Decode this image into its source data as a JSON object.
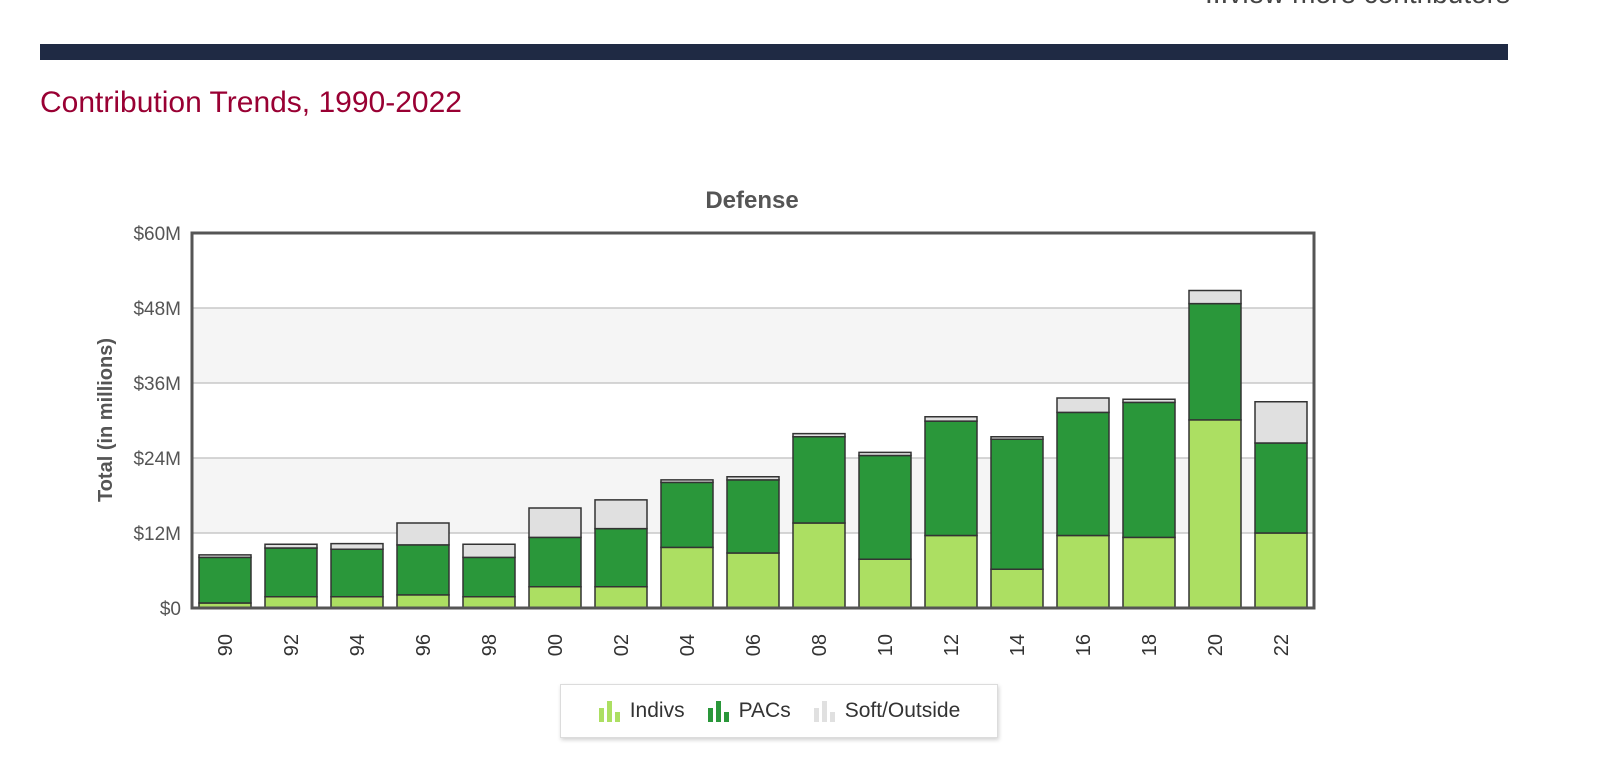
{
  "header": {
    "top_link_text": "...view more contributors",
    "section_title": "Contribution Trends, 1990-2022"
  },
  "colors": {
    "indivs": "#acdf62",
    "pacs": "#2a973a",
    "soft": "#e0e0e0",
    "divider": "#1f2a44",
    "title": "#990033"
  },
  "icons": {
    "legend": "bar-chart-icon"
  },
  "chart_data": {
    "type": "bar",
    "stacked": true,
    "title": "Defense",
    "ylabel": "Total (in millions)",
    "xlabel": "",
    "ylim": [
      0,
      60
    ],
    "yticks": [
      0,
      12,
      24,
      36,
      48,
      60
    ],
    "ytick_labels": [
      "$0",
      "$12M",
      "$24M",
      "$36M",
      "$48M",
      "$60M"
    ],
    "categories": [
      "90",
      "92",
      "94",
      "96",
      "98",
      "00",
      "02",
      "04",
      "06",
      "08",
      "10",
      "12",
      "14",
      "16",
      "18",
      "20",
      "22"
    ],
    "series": [
      {
        "name": "Indivs",
        "values": [
          0.8,
          1.8,
          1.8,
          2.1,
          1.8,
          3.4,
          3.4,
          9.7,
          8.8,
          13.6,
          7.8,
          11.6,
          6.2,
          11.6,
          11.3,
          30.1,
          12.0
        ]
      },
      {
        "name": "PACs",
        "values": [
          7.3,
          7.8,
          7.6,
          8.0,
          6.3,
          7.9,
          9.3,
          10.4,
          11.7,
          13.8,
          16.6,
          18.3,
          20.8,
          19.7,
          21.6,
          18.6,
          14.4
        ]
      },
      {
        "name": "Soft/Outside",
        "values": [
          0.4,
          0.6,
          0.9,
          3.5,
          2.1,
          4.7,
          4.6,
          0.4,
          0.5,
          0.5,
          0.5,
          0.7,
          0.4,
          2.3,
          0.5,
          2.1,
          6.6
        ]
      }
    ],
    "grid": true,
    "legend_position": "bottom-center"
  }
}
